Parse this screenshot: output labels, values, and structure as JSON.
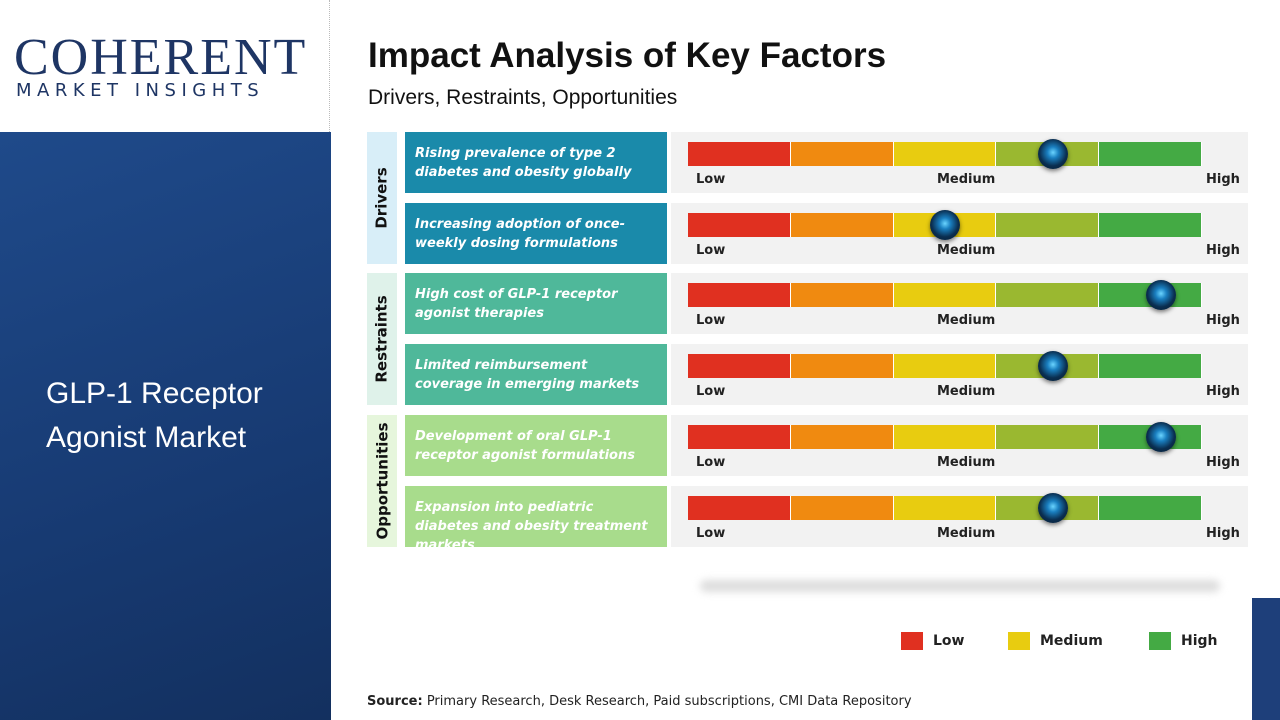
{
  "logo": {
    "line1": "COHERENT",
    "line2": "MARKET INSIGHTS"
  },
  "market": {
    "line1": "GLP-1 Receptor",
    "line2": "Agonist Market"
  },
  "title": "Impact Analysis of Key Factors",
  "subtitle": "Drivers, Restraints, Opportunities",
  "scale": {
    "low": "Low",
    "medium": "Medium",
    "high": "High"
  },
  "colors": {
    "low": "#e03020",
    "low_mid": "#f08a10",
    "medium": "#e8cc10",
    "mid_high": "#9ab830",
    "high": "#44aa44"
  },
  "categories": [
    {
      "name": "Drivers",
      "color": "#1a8aaa",
      "bg": "#d8eef8",
      "factors": [
        {
          "text": "Rising prevalence of type 2 diabetes and obesity globally",
          "impact": 0.71
        },
        {
          "text": "Increasing adoption of once-weekly dosing formulations",
          "impact": 0.5
        }
      ]
    },
    {
      "name": "Restraints",
      "color": "#4fb89a",
      "bg": "#dff2ea",
      "factors": [
        {
          "text": "High cost of GLP-1 receptor agonist therapies",
          "impact": 0.92
        },
        {
          "text": "Limited reimbursement coverage in emerging markets",
          "impact": 0.71
        }
      ]
    },
    {
      "name": "Opportunities",
      "color": "#a8dc8c",
      "bg": "#e6f6dc",
      "factors": [
        {
          "text": "Development of oral GLP-1 receptor agonist formulations",
          "impact": 0.92
        },
        {
          "text": "Expansion into pediatric diabetes and obesity treatment markets",
          "impact": 0.71
        }
      ]
    }
  ],
  "legend": [
    {
      "label": "Low",
      "color": "#e03020"
    },
    {
      "label": "Medium",
      "color": "#e8cc10"
    },
    {
      "label": "High",
      "color": "#44aa44"
    }
  ],
  "source": {
    "label": "Source:",
    "text": " Primary Research, Desk Research, Paid subscriptions, CMI Data Repository"
  }
}
